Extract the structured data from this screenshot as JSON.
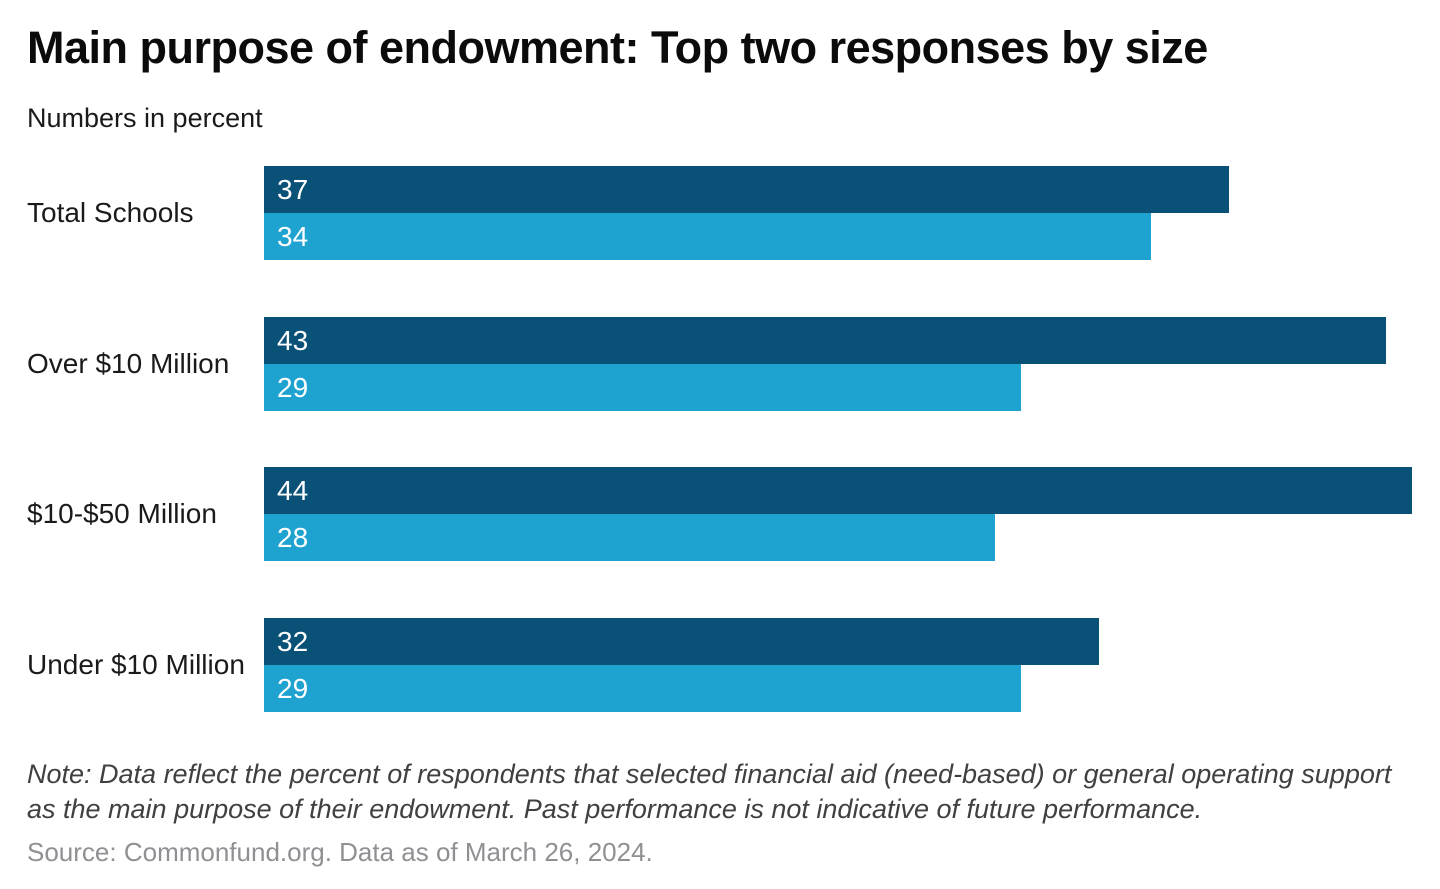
{
  "title": "Main purpose of endowment: Top two responses by size",
  "subtitle": "Numbers in percent",
  "note": "Note: Data reflect the percent of respondents that selected financial aid (need-based) or general operating support as the main purpose of their endowment. Past performance is not indicative of future performance.",
  "source": "Source: Commonfund.org. Data as of March 26, 2024.",
  "chart_data": {
    "type": "bar",
    "orientation": "horizontal",
    "title": "Main purpose of endowment: Top two responses by size",
    "subtitle": "Numbers in percent",
    "categories": [
      "Total Schools",
      "Over $10 Million",
      "$10-$50 Million",
      "Under $10 Million"
    ],
    "series": [
      {
        "name": "financial aid (need-based)",
        "color": "#0a5178",
        "values": [
          37,
          43,
          44,
          32
        ]
      },
      {
        "name": "general operating support",
        "color": "#1ea2cf",
        "values": [
          34,
          29,
          28,
          29
        ]
      }
    ],
    "xlim": [
      0,
      44
    ],
    "value_labels": "inside-left",
    "value_label_color": "#ffffff",
    "grid": false,
    "legend": false
  },
  "colors": {
    "bar_dark": "#0a5178",
    "bar_light": "#1ea2cf",
    "value_label": "#ffffff",
    "note_text": "#404040",
    "source_text": "#8e9093"
  }
}
